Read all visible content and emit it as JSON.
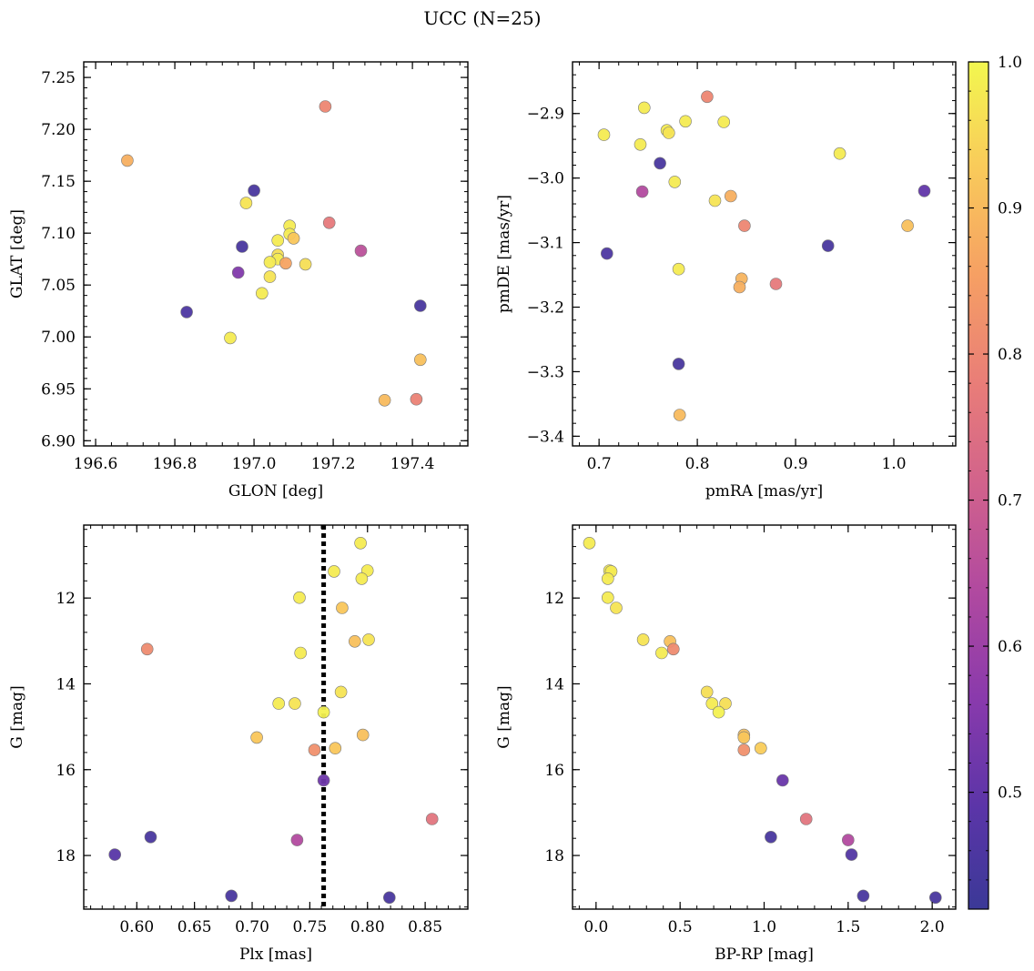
{
  "figure": {
    "title": "UCC (N=25)"
  },
  "colorbar": {
    "colormap": "plasma",
    "range": [
      0.42,
      1.0
    ],
    "ticks": [
      0.5,
      0.6,
      0.7,
      0.8,
      0.9,
      1.0
    ],
    "tick_labels": [
      "0.5",
      "0.6",
      "0.7",
      "0.8",
      "0.9",
      "1.0"
    ]
  },
  "chart_data": [
    {
      "type": "scatter",
      "xlabel": "GLON [deg]",
      "ylabel": "GLAT [deg]",
      "xlim": [
        196.57,
        197.54
      ],
      "ylim": [
        6.895,
        7.265
      ],
      "x_ticks": [
        196.6,
        196.8,
        197.0,
        197.2,
        197.4
      ],
      "x_tick_labels": [
        "196.6",
        "196.8",
        "197.0",
        "197.2",
        "197.4"
      ],
      "y_ticks": [
        6.9,
        6.95,
        7.0,
        7.05,
        7.1,
        7.15,
        7.2,
        7.25
      ],
      "y_tick_labels": [
        "6.90",
        "6.95",
        "7.00",
        "7.05",
        "7.10",
        "7.15",
        "7.20",
        "7.25"
      ],
      "points": [
        {
          "x": 196.68,
          "y": 7.17,
          "c": 0.88
        },
        {
          "x": 197.18,
          "y": 7.222,
          "c": 0.8
        },
        {
          "x": 197.0,
          "y": 7.141,
          "c": 0.45
        },
        {
          "x": 196.98,
          "y": 7.129,
          "c": 0.97
        },
        {
          "x": 197.09,
          "y": 7.107,
          "c": 0.98
        },
        {
          "x": 197.19,
          "y": 7.11,
          "c": 0.77
        },
        {
          "x": 197.09,
          "y": 7.099,
          "c": 0.98
        },
        {
          "x": 197.1,
          "y": 7.095,
          "c": 0.92
        },
        {
          "x": 197.06,
          "y": 7.093,
          "c": 0.98
        },
        {
          "x": 196.97,
          "y": 7.087,
          "c": 0.45
        },
        {
          "x": 197.27,
          "y": 7.083,
          "c": 0.66
        },
        {
          "x": 197.06,
          "y": 7.079,
          "c": 0.96
        },
        {
          "x": 197.06,
          "y": 7.075,
          "c": 0.98
        },
        {
          "x": 197.04,
          "y": 7.072,
          "c": 0.98
        },
        {
          "x": 197.08,
          "y": 7.071,
          "c": 0.86
        },
        {
          "x": 197.13,
          "y": 7.07,
          "c": 0.96
        },
        {
          "x": 196.96,
          "y": 7.062,
          "c": 0.55
        },
        {
          "x": 197.04,
          "y": 7.058,
          "c": 0.97
        },
        {
          "x": 197.02,
          "y": 7.042,
          "c": 0.98
        },
        {
          "x": 197.42,
          "y": 7.03,
          "c": 0.45
        },
        {
          "x": 196.83,
          "y": 7.024,
          "c": 0.46
        },
        {
          "x": 196.94,
          "y": 6.999,
          "c": 0.98
        },
        {
          "x": 197.42,
          "y": 6.978,
          "c": 0.91
        },
        {
          "x": 197.33,
          "y": 6.939,
          "c": 0.9
        },
        {
          "x": 197.41,
          "y": 6.94,
          "c": 0.79
        }
      ]
    },
    {
      "type": "scatter",
      "xlabel": "pmRA [mas/yr]",
      "ylabel": "pmDE [mas/yr]",
      "xlim": [
        0.673,
        1.063
      ],
      "ylim": [
        -3.415,
        -2.82
      ],
      "x_ticks": [
        0.7,
        0.8,
        0.9,
        1.0
      ],
      "x_tick_labels": [
        "0.7",
        "0.8",
        "0.9",
        "1.0"
      ],
      "y_ticks": [
        -3.4,
        -3.3,
        -3.2,
        -3.1,
        -3.0,
        -2.9
      ],
      "y_tick_labels": [
        "−3.4",
        "−3.3",
        "−3.2",
        "−3.1",
        "−3.0",
        "−2.9"
      ],
      "points": [
        {
          "x": 0.81,
          "y": -2.874,
          "c": 0.8
        },
        {
          "x": 0.746,
          "y": -2.891,
          "c": 0.98
        },
        {
          "x": 0.705,
          "y": -2.933,
          "c": 0.98
        },
        {
          "x": 0.742,
          "y": -2.948,
          "c": 0.98
        },
        {
          "x": 0.769,
          "y": -2.926,
          "c": 0.98
        },
        {
          "x": 0.771,
          "y": -2.93,
          "c": 0.97
        },
        {
          "x": 0.788,
          "y": -2.912,
          "c": 0.98
        },
        {
          "x": 0.827,
          "y": -2.913,
          "c": 0.98
        },
        {
          "x": 0.945,
          "y": -2.962,
          "c": 0.98
        },
        {
          "x": 0.762,
          "y": -2.977,
          "c": 0.45
        },
        {
          "x": 0.777,
          "y": -3.006,
          "c": 0.98
        },
        {
          "x": 0.744,
          "y": -3.021,
          "c": 0.64
        },
        {
          "x": 0.818,
          "y": -3.035,
          "c": 0.97
        },
        {
          "x": 0.834,
          "y": -3.028,
          "c": 0.88
        },
        {
          "x": 1.031,
          "y": -3.02,
          "c": 0.5
        },
        {
          "x": 0.848,
          "y": -3.074,
          "c": 0.8
        },
        {
          "x": 1.014,
          "y": -3.074,
          "c": 0.91
        },
        {
          "x": 0.708,
          "y": -3.117,
          "c": 0.46
        },
        {
          "x": 0.933,
          "y": -3.105,
          "c": 0.45
        },
        {
          "x": 0.781,
          "y": -3.141,
          "c": 0.98
        },
        {
          "x": 0.845,
          "y": -3.156,
          "c": 0.89
        },
        {
          "x": 0.843,
          "y": -3.169,
          "c": 0.88
        },
        {
          "x": 0.88,
          "y": -3.164,
          "c": 0.77
        },
        {
          "x": 0.781,
          "y": -3.288,
          "c": 0.45
        },
        {
          "x": 0.782,
          "y": -3.367,
          "c": 0.9
        }
      ]
    },
    {
      "type": "scatter",
      "xlabel": "Plx [mas]",
      "ylabel": "G [mag]",
      "xlim": [
        0.554,
        0.887
      ],
      "ylim": [
        19.25,
        10.3
      ],
      "y_inverted": true,
      "x_ticks": [
        0.6,
        0.65,
        0.7,
        0.75,
        0.8,
        0.85
      ],
      "x_tick_labels": [
        "0.60",
        "0.65",
        "0.70",
        "0.75",
        "0.80",
        "0.85"
      ],
      "y_ticks": [
        12,
        14,
        16,
        18
      ],
      "y_tick_labels": [
        "12",
        "14",
        "16",
        "18"
      ],
      "reference_line": {
        "x": 0.762,
        "style": "dotted"
      },
      "points": [
        {
          "x": 0.794,
          "y": 10.72,
          "c": 0.98
        },
        {
          "x": 0.771,
          "y": 11.38,
          "c": 0.98
        },
        {
          "x": 0.8,
          "y": 11.36,
          "c": 0.98
        },
        {
          "x": 0.795,
          "y": 11.55,
          "c": 0.98
        },
        {
          "x": 0.741,
          "y": 11.99,
          "c": 0.98
        },
        {
          "x": 0.778,
          "y": 12.23,
          "c": 0.92
        },
        {
          "x": 0.801,
          "y": 12.97,
          "c": 0.97
        },
        {
          "x": 0.789,
          "y": 13.01,
          "c": 0.91
        },
        {
          "x": 0.609,
          "y": 13.19,
          "c": 0.81
        },
        {
          "x": 0.742,
          "y": 13.28,
          "c": 0.98
        },
        {
          "x": 0.777,
          "y": 14.19,
          "c": 0.97
        },
        {
          "x": 0.723,
          "y": 14.46,
          "c": 0.98
        },
        {
          "x": 0.737,
          "y": 14.46,
          "c": 0.97
        },
        {
          "x": 0.762,
          "y": 14.66,
          "c": 0.99
        },
        {
          "x": 0.796,
          "y": 15.19,
          "c": 0.91
        },
        {
          "x": 0.704,
          "y": 15.25,
          "c": 0.92
        },
        {
          "x": 0.772,
          "y": 15.5,
          "c": 0.92
        },
        {
          "x": 0.754,
          "y": 15.54,
          "c": 0.82
        },
        {
          "x": 0.762,
          "y": 16.25,
          "c": 0.52
        },
        {
          "x": 0.856,
          "y": 17.15,
          "c": 0.76
        },
        {
          "x": 0.612,
          "y": 17.57,
          "c": 0.45
        },
        {
          "x": 0.739,
          "y": 17.64,
          "c": 0.64
        },
        {
          "x": 0.581,
          "y": 17.98,
          "c": 0.48
        },
        {
          "x": 0.682,
          "y": 18.94,
          "c": 0.45
        },
        {
          "x": 0.819,
          "y": 18.98,
          "c": 0.45
        }
      ]
    },
    {
      "type": "scatter",
      "xlabel": "BP-RP [mag]",
      "ylabel": "G [mag]",
      "xlim": [
        -0.14,
        2.14
      ],
      "ylim": [
        19.25,
        10.3
      ],
      "y_inverted": true,
      "x_ticks": [
        0.0,
        0.5,
        1.0,
        1.5,
        2.0
      ],
      "x_tick_labels": [
        "0.0",
        "0.5",
        "1.0",
        "1.5",
        "2.0"
      ],
      "y_ticks": [
        12,
        14,
        16,
        18
      ],
      "y_tick_labels": [
        "12",
        "14",
        "16",
        "18"
      ],
      "points": [
        {
          "x": -0.04,
          "y": 10.72,
          "c": 0.98
        },
        {
          "x": 0.08,
          "y": 11.36,
          "c": 0.98
        },
        {
          "x": 0.09,
          "y": 11.38,
          "c": 0.98
        },
        {
          "x": 0.07,
          "y": 11.55,
          "c": 0.98
        },
        {
          "x": 0.07,
          "y": 11.99,
          "c": 0.98
        },
        {
          "x": 0.12,
          "y": 12.23,
          "c": 0.97
        },
        {
          "x": 0.28,
          "y": 12.97,
          "c": 0.97
        },
        {
          "x": 0.44,
          "y": 13.01,
          "c": 0.91
        },
        {
          "x": 0.46,
          "y": 13.19,
          "c": 0.81
        },
        {
          "x": 0.39,
          "y": 13.28,
          "c": 0.98
        },
        {
          "x": 0.66,
          "y": 14.19,
          "c": 0.96
        },
        {
          "x": 0.69,
          "y": 14.46,
          "c": 0.98
        },
        {
          "x": 0.77,
          "y": 14.46,
          "c": 0.96
        },
        {
          "x": 0.73,
          "y": 14.66,
          "c": 0.99
        },
        {
          "x": 0.88,
          "y": 15.19,
          "c": 0.91
        },
        {
          "x": 0.88,
          "y": 15.25,
          "c": 0.92
        },
        {
          "x": 0.98,
          "y": 15.5,
          "c": 0.93
        },
        {
          "x": 0.88,
          "y": 15.54,
          "c": 0.82
        },
        {
          "x": 1.11,
          "y": 16.25,
          "c": 0.51
        },
        {
          "x": 1.25,
          "y": 17.15,
          "c": 0.76
        },
        {
          "x": 1.04,
          "y": 17.57,
          "c": 0.45
        },
        {
          "x": 1.5,
          "y": 17.64,
          "c": 0.64
        },
        {
          "x": 1.52,
          "y": 17.98,
          "c": 0.47
        },
        {
          "x": 1.59,
          "y": 18.94,
          "c": 0.45
        },
        {
          "x": 2.02,
          "y": 18.98,
          "c": 0.45
        }
      ]
    }
  ]
}
